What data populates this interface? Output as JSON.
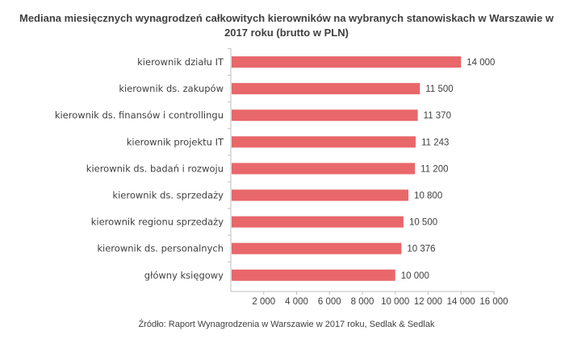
{
  "chart_data": {
    "type": "bar",
    "orientation": "horizontal",
    "title": "Mediana miesięcznych wynagrodzeń całkowitych kierowników na wybranych stanowiskach w Warszawie w 2017 roku (brutto w PLN)",
    "categories": [
      "kierownik działu IT",
      "kierownik ds. zakupów",
      "kierownik ds. finansów i controllingu",
      "kierownik projektu IT",
      "kierownik ds. badań i rozwoju",
      "kierownik ds. sprzedaży",
      "kierownik regionu sprzedaży",
      "kierownik ds. personalnych",
      "główny księgowy"
    ],
    "values": [
      14000,
      11500,
      11370,
      11243,
      11200,
      10800,
      10500,
      10376,
      10000
    ],
    "value_labels": [
      "14 000",
      "11 500",
      "11 370",
      "11 243",
      "11 200",
      "10 800",
      "10 500",
      "10 376",
      "10 000"
    ],
    "xlim": [
      0,
      16000
    ],
    "x_ticks": [
      2000,
      4000,
      6000,
      8000,
      10000,
      12000,
      14000,
      16000
    ],
    "x_tick_labels": [
      "2 000",
      "4 000",
      "6 000",
      "8 000",
      "10 000",
      "12 000",
      "14 000",
      "16 000"
    ],
    "bar_color": "#e8676b",
    "grid": false,
    "legend": "none",
    "source": "Źródło: Raport Wynagrodzenia w Warszawie w 2017 roku, Sedlak & Sedlak"
  }
}
